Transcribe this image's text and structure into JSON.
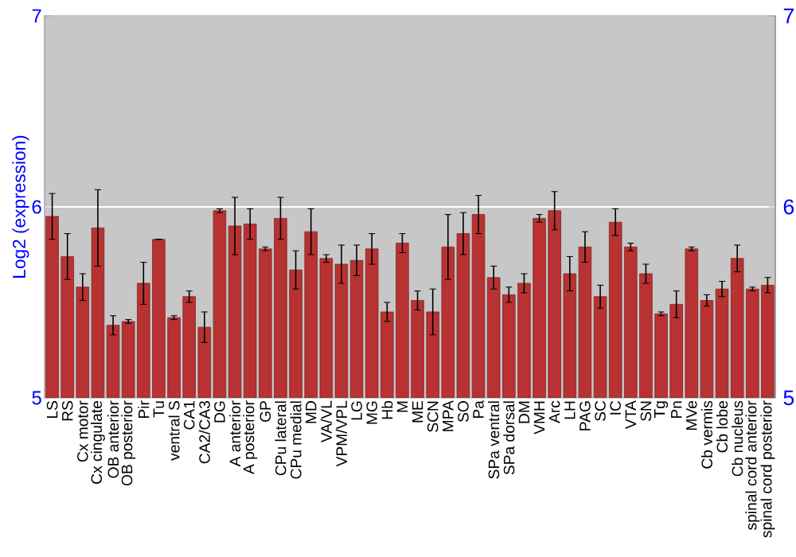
{
  "chart_data": {
    "type": "bar",
    "ylabel": "Log2 (expression)",
    "categories": [
      "LS",
      "RS",
      "Cx motor",
      "Cx cingulate",
      "OB anterior",
      "OB posterior",
      "Pir",
      "Tu",
      "ventral S",
      "CA1",
      "CA2/CA3",
      "DG",
      "A anterior",
      "A posterior",
      "GP",
      "CPu lateral",
      "CPu medial",
      "MD",
      "VA/VL",
      "VPM/VPL",
      "LG",
      "MG",
      "Hb",
      "M",
      "ME",
      "SCN",
      "MPA",
      "SO",
      "Pa",
      "SPa ventral",
      "SPa dorsal",
      "DM",
      "VMH",
      "Arc",
      "LH",
      "PAG",
      "SC",
      "IC",
      "VTA",
      "SN",
      "Tg",
      "Pn",
      "MVe",
      "Cb vermis",
      "Cb lobe",
      "Cb nucleus",
      "spinal cord anterior",
      "spinal cord posterior"
    ],
    "values": [
      5.95,
      5.74,
      5.58,
      5.89,
      5.38,
      5.4,
      5.6,
      5.83,
      5.42,
      5.53,
      5.37,
      5.98,
      5.9,
      5.91,
      5.78,
      5.94,
      5.67,
      5.87,
      5.73,
      5.7,
      5.72,
      5.78,
      5.45,
      5.81,
      5.51,
      5.45,
      5.79,
      5.86,
      5.96,
      5.63,
      5.54,
      5.6,
      5.94,
      5.98,
      5.65,
      5.79,
      5.53,
      5.92,
      5.79,
      5.65,
      5.44,
      5.49,
      5.78,
      5.51,
      5.57,
      5.73,
      5.57,
      5.59
    ],
    "errors": [
      0.12,
      0.12,
      0.07,
      0.2,
      0.05,
      0.01,
      0.11,
      0,
      0.01,
      0.03,
      0.08,
      0.01,
      0.15,
      0.08,
      0.01,
      0.11,
      0.1,
      0.12,
      0.02,
      0.1,
      0.08,
      0.08,
      0.05,
      0.05,
      0.05,
      0.12,
      0.17,
      0.11,
      0.1,
      0.06,
      0.04,
      0.05,
      0.02,
      0.1,
      0.09,
      0.08,
      0.06,
      0.07,
      0.02,
      0.05,
      0.01,
      0.07,
      0.01,
      0.03,
      0.04,
      0.07,
      0.01,
      0.04
    ],
    "color": "#b83232",
    "ylim": [
      5,
      7
    ],
    "yticks": [
      5,
      6,
      7
    ],
    "y2lim": [
      5,
      7
    ],
    "y2ticks": [
      5,
      6,
      7
    ],
    "grid": "y"
  }
}
